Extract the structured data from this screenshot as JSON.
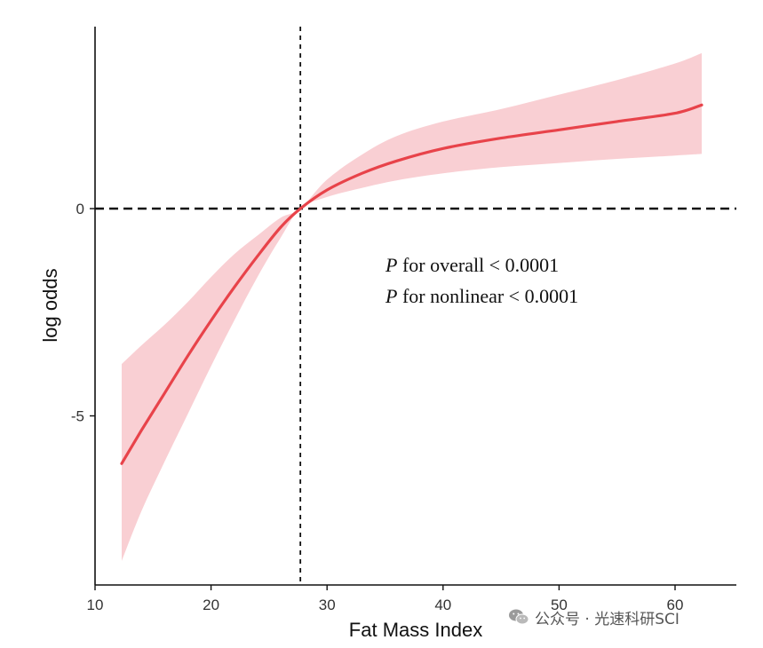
{
  "chart_data": {
    "type": "line",
    "title": "",
    "xlabel": "Fat Mass Index",
    "ylabel": "log odds",
    "xlim": [
      10,
      65
    ],
    "ylim": [
      -9,
      4.4
    ],
    "xticks": [
      10,
      20,
      30,
      40,
      50,
      60
    ],
    "yticks": [
      -5,
      0
    ],
    "reference_lines": {
      "x": 27.7,
      "y": 0
    },
    "series": [
      {
        "color": "#e8434a",
        "band_color": "#f9cfd3",
        "points": [
          {
            "x": 12.3,
            "y": -6.15,
            "lower": -8.5,
            "upper": -3.75
          },
          {
            "x": 14,
            "y": -5.35,
            "lower": -7.3,
            "upper": -3.3
          },
          {
            "x": 16,
            "y": -4.45,
            "lower": -6.1,
            "upper": -2.8
          },
          {
            "x": 18,
            "y": -3.55,
            "lower": -4.95,
            "upper": -2.25
          },
          {
            "x": 20,
            "y": -2.7,
            "lower": -3.8,
            "upper": -1.65
          },
          {
            "x": 22,
            "y": -1.9,
            "lower": -2.7,
            "upper": -1.1
          },
          {
            "x": 24,
            "y": -1.15,
            "lower": -1.65,
            "upper": -0.65
          },
          {
            "x": 26,
            "y": -0.45,
            "lower": -0.7,
            "upper": -0.22
          },
          {
            "x": 27.7,
            "y": 0,
            "lower": 0,
            "upper": 0
          },
          {
            "x": 30,
            "y": 0.45,
            "lower": 0.28,
            "upper": 0.7
          },
          {
            "x": 33,
            "y": 0.85,
            "lower": 0.5,
            "upper": 1.3
          },
          {
            "x": 36,
            "y": 1.15,
            "lower": 0.68,
            "upper": 1.75
          },
          {
            "x": 40,
            "y": 1.45,
            "lower": 0.85,
            "upper": 2.1
          },
          {
            "x": 45,
            "y": 1.7,
            "lower": 1.0,
            "upper": 2.4
          },
          {
            "x": 50,
            "y": 1.9,
            "lower": 1.1,
            "upper": 2.75
          },
          {
            "x": 55,
            "y": 2.1,
            "lower": 1.2,
            "upper": 3.1
          },
          {
            "x": 60,
            "y": 2.3,
            "lower": 1.28,
            "upper": 3.5
          },
          {
            "x": 62.3,
            "y": 2.5,
            "lower": 1.32,
            "upper": 3.75
          }
        ]
      }
    ],
    "annotation": {
      "line1_italic": "P",
      "line1_text": " for overall < 0.0001",
      "line2_italic": "P",
      "line2_text": " for nonlinear < 0.0001"
    },
    "grid": false,
    "legend": "none"
  },
  "watermark": {
    "text": "公众号 · 光速科研SCI",
    "icon": "wechat-icon"
  }
}
